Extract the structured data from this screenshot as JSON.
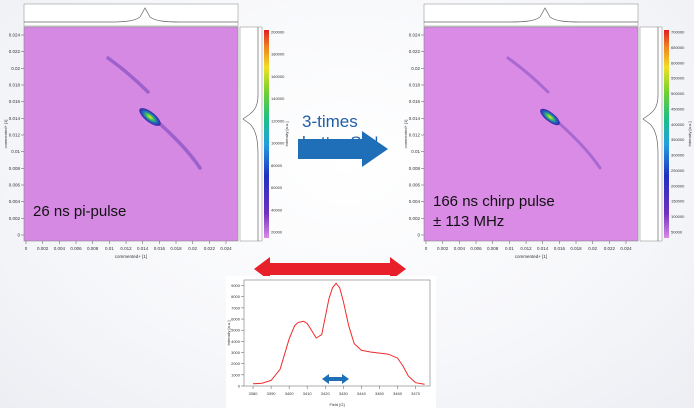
{
  "left_plot": {
    "annotation": "26 ns pi-pulse",
    "x_ticks": [
      "0",
      "0.002",
      "0.004",
      "0.006",
      "0.008",
      "0.01",
      "0.012",
      "0.014",
      "0.016",
      "0.018",
      "0.02",
      "0.022",
      "0.024"
    ],
    "y_ticks": [
      "0.024",
      "0.022",
      "0.02",
      "0.018",
      "0.016",
      "0.014",
      "0.012",
      "0.01",
      "0.008",
      "0.006",
      "0.004",
      "0.002",
      "0"
    ],
    "x_label": "commented+ [1]",
    "y_label": "commented+ [1]",
    "colorbar_ticks": [
      "200000",
      "180000",
      "160000",
      "140000",
      "120000",
      "100000",
      "80000",
      "60000",
      "40000",
      "20000"
    ],
    "colorbar_label": "Intensity [a.u.]"
  },
  "right_plot": {
    "annotation_line1": "166 ns chirp pulse",
    "annotation_line2": "± 113 MHz",
    "x_ticks": [
      "0",
      "0.002",
      "0.004",
      "0.006",
      "0.008",
      "0.01",
      "0.012",
      "0.014",
      "0.016",
      "0.018",
      "0.02",
      "0.022",
      "0.024"
    ],
    "y_ticks": [
      "0.024",
      "0.022",
      "0.02",
      "0.018",
      "0.016",
      "0.014",
      "0.012",
      "0.01",
      "0.008",
      "0.006",
      "0.004",
      "0.002",
      "0"
    ],
    "x_label": "commented+ [1]",
    "y_label": "commented+ [1]",
    "colorbar_ticks": [
      "700000",
      "650000",
      "600000",
      "550000",
      "500000",
      "450000",
      "400000",
      "350000",
      "300000",
      "250000",
      "200000",
      "150000",
      "100000",
      "50000"
    ],
    "colorbar_label": "Intensity [a.u.]"
  },
  "middle": {
    "text_line1": "3-times",
    "text_line2": "better S/N"
  },
  "spectrum": {
    "x_ticks": [
      "3380",
      "3390",
      "3400",
      "3410",
      "3420",
      "3430",
      "3440",
      "3450",
      "3460",
      "3470"
    ],
    "y_ticks": [
      "9000",
      "8000",
      "7000",
      "6000",
      "5000",
      "4000",
      "3000",
      "2000",
      "1000",
      "0"
    ],
    "x_label": "Field [G]",
    "y_label": "Intensity [a.u.]"
  },
  "colors": {
    "map_background": "#d98be6",
    "arrow_blue": "#1f6fb8",
    "arrow_red": "#e8202a",
    "spectrum_line": "#ee2a2a"
  },
  "chart_data": [
    {
      "type": "line",
      "x": [
        3380,
        3385,
        3390,
        3395,
        3400,
        3403,
        3405,
        3408,
        3410,
        3412,
        3415,
        3418,
        3420,
        3422,
        3424,
        3426,
        3428,
        3430,
        3433,
        3436,
        3440,
        3445,
        3450,
        3455,
        3460,
        3463,
        3466,
        3470,
        3475
      ],
      "y": [
        200,
        250,
        500,
        1500,
        4200,
        5400,
        5700,
        5800,
        5600,
        5100,
        4300,
        4600,
        6200,
        7800,
        8800,
        9200,
        8800,
        7600,
        5400,
        3800,
        3200,
        3050,
        2950,
        2850,
        2500,
        1800,
        900,
        300,
        150
      ],
      "xlabel": "Field [G]",
      "ylabel": "Intensity [a.u.]",
      "xlim": [
        3375,
        3478
      ],
      "ylim": [
        0,
        9500
      ],
      "grid": false
    }
  ]
}
